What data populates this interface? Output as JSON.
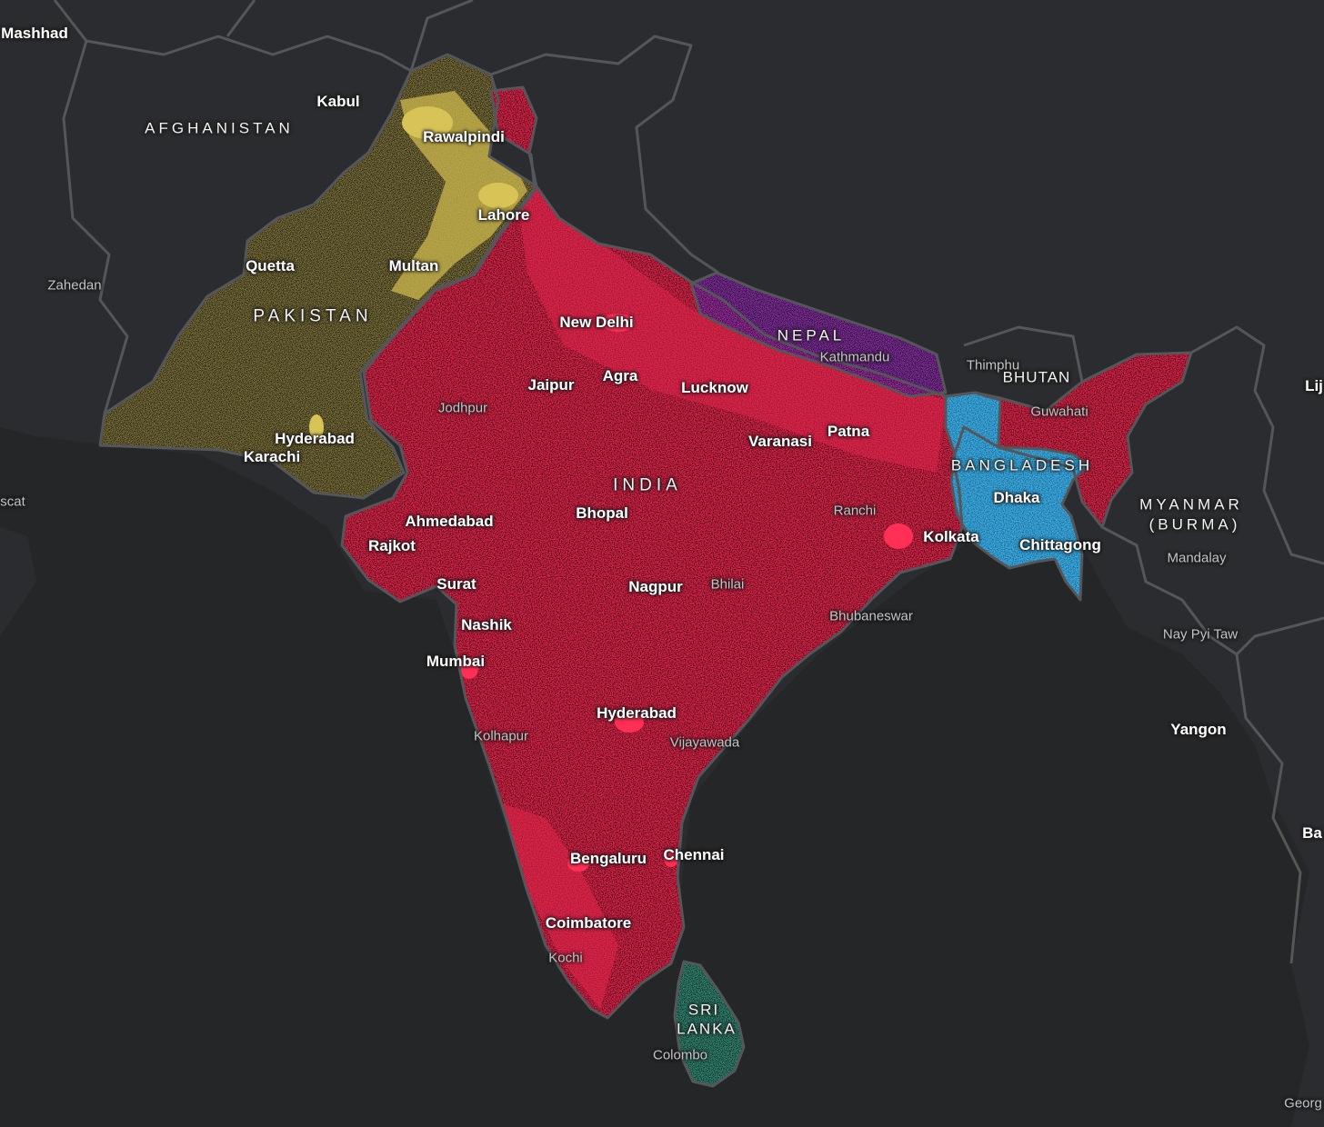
{
  "map": {
    "colors": {
      "background": "#252628",
      "land": "#2b2c2f",
      "border": "#555659",
      "india": "#e0244a",
      "pakistan": "#cdb84d",
      "bangladesh": "#3aaee8",
      "nepal": "#a535c9",
      "sri_lanka": "#3fb89a"
    },
    "countries": {
      "afghanistan": "AFGHANISTAN",
      "pakistan": "PAKISTAN",
      "india": "INDIA",
      "nepal": "NEPAL",
      "bhutan": "BHUTAN",
      "bangladesh": "BANGLADESH",
      "myanmar": "MYANMAR",
      "myanmar_2": "(BURMA)",
      "sri_lanka": "SRI",
      "sri_lanka_2": "LANKA"
    },
    "cities": {
      "mashhad": "Mashhad",
      "kabul": "Kabul",
      "rawalpindi": "Rawalpindi",
      "lahore": "Lahore",
      "quetta": "Quetta",
      "multan": "Multan",
      "hyderabad_pk": "Hyderabad",
      "karachi": "Karachi",
      "new_delhi": "New Delhi",
      "jaipur": "Jaipur",
      "agra": "Agra",
      "lucknow": "Lucknow",
      "varanasi": "Varanasi",
      "patna": "Patna",
      "bhopal": "Bhopal",
      "ahmedabad": "Ahmedabad",
      "rajkot": "Rajkot",
      "surat": "Surat",
      "nagpur": "Nagpur",
      "nashik": "Nashik",
      "mumbai": "Mumbai",
      "hyderabad_in": "Hyderabad",
      "bengaluru": "Bengaluru",
      "chennai": "Chennai",
      "coimbatore": "Coimbatore",
      "kolkata": "Kolkata",
      "dhaka": "Dhaka",
      "chittagong": "Chittagong",
      "yangon": "Yangon"
    },
    "minor_cities": {
      "zahedan": "Zahedan",
      "muscat": "scat",
      "jodhpur": "Jodhpur",
      "kathmandu": "Kathmandu",
      "thimphu": "Thimphu",
      "guwahati": "Guwahati",
      "ranchi": "Ranchi",
      "bhilai": "Bhilai",
      "bhubaneswar": "Bhubaneswar",
      "kolhapur": "Kolhapur",
      "vijayawada": "Vijayawada",
      "kochi": "Kochi",
      "colombo": "Colombo",
      "mandalay": "Mandalay",
      "nay_pyi_taw": "Nay Pyi Taw",
      "lijiang": "Lij",
      "bago": "Ba",
      "george_town": "Georg"
    }
  }
}
